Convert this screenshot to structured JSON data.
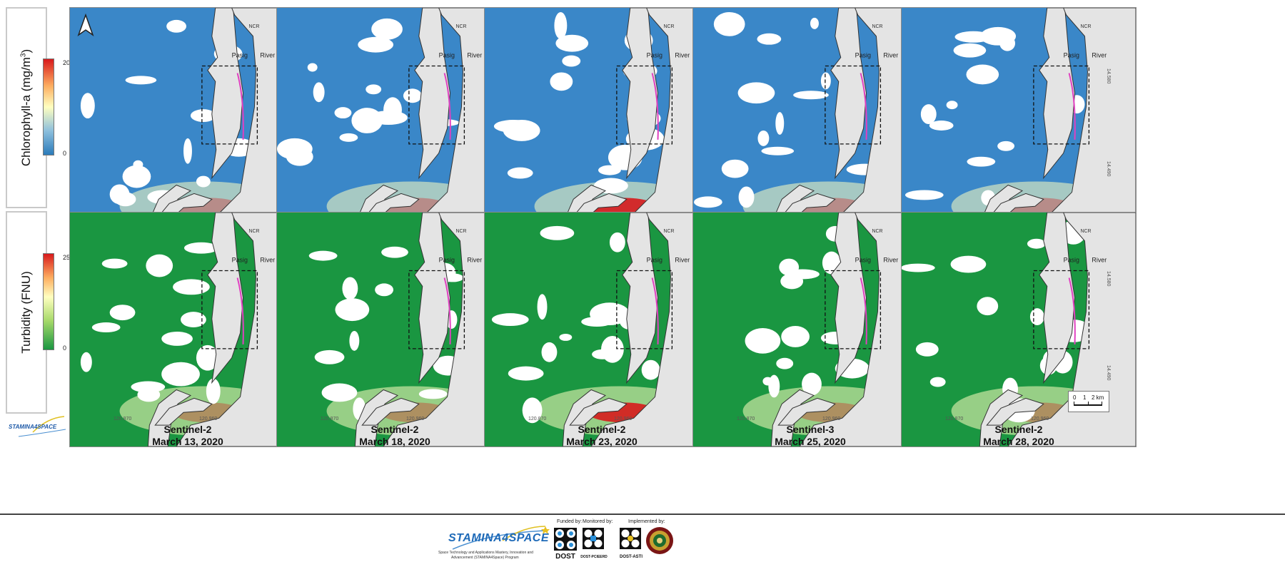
{
  "rows": [
    {
      "label_pre": "Chlorophyll-a (mg/m",
      "label_sup": "3",
      "label_post": ")",
      "scale_max": "20",
      "scale_min": "0"
    },
    {
      "label_pre": "Turbidity (FNU)",
      "label_sup": "",
      "label_post": "",
      "scale_max": "25",
      "scale_min": "0"
    }
  ],
  "panels": [
    {
      "sensor": "Sentinel-2",
      "date": "March 13, 2020"
    },
    {
      "sensor": "Sentinel-2",
      "date": "March 18, 2020"
    },
    {
      "sensor": "Sentinel-2",
      "date": "March 23, 2020"
    },
    {
      "sensor": "Sentinel-3",
      "date": "March 25, 2020"
    },
    {
      "sensor": "Sentinel-2",
      "date": "March 28, 2020"
    }
  ],
  "map_labels": {
    "ncr": "NCR",
    "pasig": "Pasig",
    "river": "River",
    "north": "N"
  },
  "lon_ticks": [
    "120.870",
    "120.960"
  ],
  "lat_ticks": [
    "14.580",
    "14.490"
  ],
  "scale_bar": {
    "labels": [
      "0",
      "1",
      "2 km"
    ]
  },
  "colors": {
    "chl_low": "#3a87c8",
    "chl_mid": "#ffffc0",
    "chl_high": "#d7191c",
    "turb_low": "#1a9641",
    "turb_mid": "#ffffc0",
    "turb_high": "#d7191c",
    "land": "#e4e4e4",
    "cloud": "#ffffff",
    "boulevard": "#e040c0"
  },
  "footer": {
    "program": "STAMINA4SPACE",
    "program_desc_1": "Space Technology and Applications Mastery, Innovation and",
    "program_desc_2": "Advancement (STAMINA4Space) Program",
    "funded_by": "Funded by:",
    "monitored_by": "Monitored by:",
    "implemented_by": "Implemented by:",
    "agency_1": "DOST",
    "agency_2": "DOST-PCIEERD",
    "agency_3": "DOST-ASTI"
  },
  "left_logo": "STAMINA4SPACE"
}
